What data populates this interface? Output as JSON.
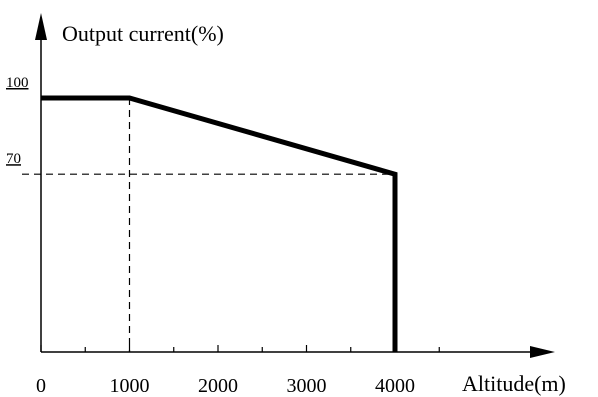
{
  "chart_data": {
    "type": "line",
    "title": "",
    "xlabel": "Altitude(m)",
    "ylabel": "Output current(%)",
    "x_ticks": [
      "0",
      "1000",
      "2000",
      "3000",
      "4000"
    ],
    "y_ticks": [
      "100",
      "70"
    ],
    "xlim": [
      0,
      5500
    ],
    "ylim": [
      0,
      115
    ],
    "grid": false,
    "series": [
      {
        "x": [
          0,
          1000,
          4000,
          4000
        ],
        "y": [
          100,
          100,
          70,
          0
        ]
      }
    ],
    "reference_lines": [
      {
        "axis": "x",
        "value": 1000,
        "from": 0,
        "to": 100
      },
      {
        "axis": "y",
        "value": 70,
        "from": 0,
        "to": 4000
      }
    ],
    "colors": {
      "line": "#000000"
    }
  }
}
